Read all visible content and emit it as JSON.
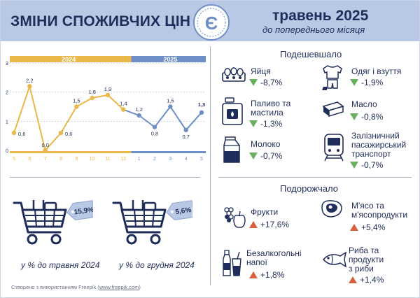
{
  "header": {
    "title": "ЗМІНИ СПОЖИВЧИХ ЦІН",
    "period": "травень 2025",
    "subtitle": "до попереднього місяця",
    "logo_letter": "Є"
  },
  "chart_data": {
    "type": "line",
    "year_labels": [
      "2024",
      "2025"
    ],
    "x": [
      "5",
      "6",
      "7",
      "8",
      "9",
      "10",
      "11",
      "12",
      "1",
      "2",
      "3",
      "4",
      "5"
    ],
    "series": [
      {
        "values": [
          0.6,
          2.2,
          0.0,
          0.6,
          1.5,
          1.8,
          1.9,
          1.4,
          1.2,
          0.8,
          1.5,
          0.7,
          1.3
        ]
      }
    ],
    "data_labels": [
      "0,6",
      "2,2",
      "0,0",
      "0,6",
      "1,5",
      "1,8",
      "1,9",
      "1,4",
      "1,2",
      "0,8",
      "1,5",
      "0,7",
      "1,3"
    ],
    "y_ticks": [
      "0",
      "1",
      "2",
      "3"
    ],
    "ylim": [
      0,
      3
    ],
    "colors": {
      "2024": "#eab74a",
      "2025": "#6f90c6"
    }
  },
  "cheaper": {
    "title": "Подешевшало",
    "items": [
      {
        "name": "Яйця",
        "value": "-8,7%",
        "icon": "eggs-icon"
      },
      {
        "name": "Одяг і взуття",
        "value": "-1,9%",
        "icon": "clothes-icon"
      },
      {
        "name_lines": [
          "Паливо та",
          "мастила"
        ],
        "value": "-1,3%",
        "icon": "fuel-icon"
      },
      {
        "name": "Масло",
        "value": "-0,8%",
        "icon": "butter-icon"
      },
      {
        "name": "Молоко",
        "value": "-0,7%",
        "icon": "milk-icon"
      },
      {
        "name_lines": [
          "Залізничний",
          "пасажирський",
          "транспорт"
        ],
        "value": "-0,7%",
        "icon": "train-icon"
      }
    ]
  },
  "pricier": {
    "title": "Подорожчало",
    "items": [
      {
        "name": "Фрукти",
        "value": "+17,6%",
        "icon": "fruits-icon"
      },
      {
        "name_lines": [
          "М'ясо та",
          "м'ясопродукти"
        ],
        "value": "+5,4%",
        "icon": "meat-icon"
      },
      {
        "name_lines": [
          "Безалкогольні",
          "напої"
        ],
        "value": "+1,8%",
        "icon": "drinks-icon"
      },
      {
        "name_lines": [
          "Риба та",
          "продукти",
          "з риби"
        ],
        "value": "+1,4%",
        "icon": "fish-icon"
      }
    ]
  },
  "annual": [
    {
      "value": "15,9%",
      "caption": "у % до травня 2024"
    },
    {
      "value": "5,6%",
      "caption": "у % до грудня 2024"
    }
  ],
  "footer": {
    "text": "Створено з використанням Freepik (",
    "link": "www.freepik.com",
    "end": ")"
  }
}
